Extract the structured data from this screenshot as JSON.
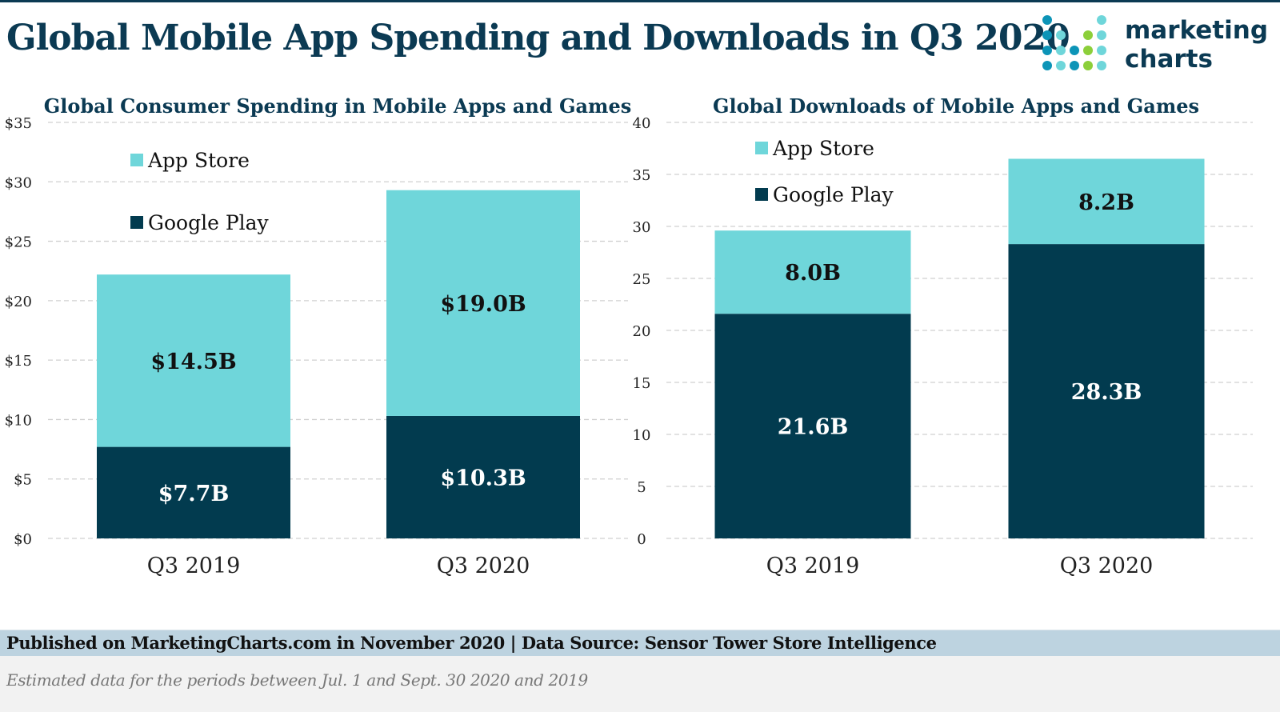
{
  "header": {
    "title": "Global Mobile App Spending and Downloads in Q3 2020",
    "logo_line1": "marketing",
    "logo_line2": "charts"
  },
  "colors": {
    "app_store": "#6fd6da",
    "google_play": "#023b4f",
    "title": "#0b3a53",
    "footer_band": "#bdd3e0",
    "logo_dots": [
      "#0c94b7",
      "#6fd6da",
      "#8ccf3a"
    ]
  },
  "chart_data": [
    {
      "type": "bar",
      "stacked": true,
      "title": "Global Consumer Spending in Mobile Apps and Games",
      "categories": [
        "Q3 2019",
        "Q3 2020"
      ],
      "series": [
        {
          "name": "Google Play",
          "values": [
            7.7,
            10.3
          ],
          "labels": [
            "$7.7B",
            "$10.3B"
          ],
          "color": "#023b4f",
          "label_color": "#ffffff"
        },
        {
          "name": "App Store",
          "values": [
            14.5,
            19.0
          ],
          "labels": [
            "$14.5B",
            "$19.0B"
          ],
          "color": "#6fd6da",
          "label_color": "#111111"
        }
      ],
      "legend": [
        "App Store",
        "Google Play"
      ],
      "legend_position": "top-left",
      "ylim": [
        0,
        35
      ],
      "yticks": [
        0,
        5,
        10,
        15,
        20,
        25,
        30,
        35
      ],
      "ytick_labels": [
        "$0",
        "$5",
        "$10",
        "$15",
        "$20",
        "$25",
        "$30",
        "$35"
      ],
      "xlabel": "",
      "ylabel": "",
      "grid": true
    },
    {
      "type": "bar",
      "stacked": true,
      "title": "Global Downloads of Mobile Apps and Games",
      "categories": [
        "Q3 2019",
        "Q3 2020"
      ],
      "series": [
        {
          "name": "Google Play",
          "values": [
            21.6,
            28.3
          ],
          "labels": [
            "21.6B",
            "28.3B"
          ],
          "color": "#023b4f",
          "label_color": "#ffffff"
        },
        {
          "name": "App Store",
          "values": [
            8.0,
            8.2
          ],
          "labels": [
            "8.0B",
            "8.2B"
          ],
          "color": "#6fd6da",
          "label_color": "#111111"
        }
      ],
      "legend": [
        "App Store",
        "Google Play"
      ],
      "legend_position": "top-left",
      "ylim": [
        0,
        40
      ],
      "yticks": [
        0,
        5,
        10,
        15,
        20,
        25,
        30,
        35,
        40
      ],
      "ytick_labels": [
        "0",
        "5",
        "10",
        "15",
        "20",
        "25",
        "30",
        "35",
        "40"
      ],
      "xlabel": "",
      "ylabel": "",
      "grid": true
    }
  ],
  "footer": {
    "source": "Published on MarketingCharts.com in November 2020 | Data Source: Sensor Tower Store Intelligence",
    "note": "Estimated data for the periods between Jul. 1 and Sept. 30 2020 and 2019"
  }
}
